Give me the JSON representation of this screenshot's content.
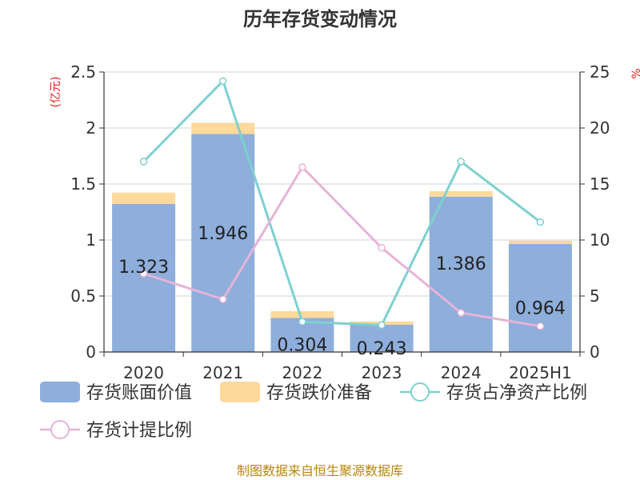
{
  "chart_data": {
    "type": "bar",
    "title": "历年存货变动情况",
    "left_unit": "(亿元)",
    "right_unit": "%",
    "categories": [
      "2020",
      "2021",
      "2022",
      "2023",
      "2024",
      "2025H1"
    ],
    "series": [
      {
        "name": "存货账面价值",
        "kind": "bar",
        "axis": "left",
        "color": "#8eaedb",
        "values": [
          1.323,
          1.946,
          0.304,
          0.243,
          1.386,
          0.964
        ],
        "labels": [
          "1.323",
          "1.946",
          "0.304",
          "0.243",
          "1.386",
          "0.964"
        ]
      },
      {
        "name": "存货跌价准备",
        "kind": "bar",
        "axis": "left",
        "color": "#fdd99b",
        "values": [
          0.1,
          0.1,
          0.06,
          0.03,
          0.05,
          0.03
        ]
      },
      {
        "name": "存货占净资产比例",
        "kind": "line",
        "axis": "right",
        "color": "#7ed0d0",
        "values": [
          17.0,
          24.2,
          2.7,
          2.4,
          17.0,
          11.6
        ]
      },
      {
        "name": "存货计提比例",
        "kind": "line",
        "axis": "right",
        "color": "#e6b4d8",
        "values": [
          7.0,
          4.7,
          16.5,
          9.3,
          3.5,
          2.3
        ]
      }
    ],
    "left_axis": {
      "min": 0,
      "max": 2.5,
      "ticks": [
        "0",
        "0.5",
        "1",
        "1.5",
        "2",
        "2.5"
      ]
    },
    "right_axis": {
      "min": 0,
      "max": 25,
      "ticks": [
        "0",
        "5",
        "10",
        "15",
        "20",
        "25"
      ]
    },
    "grid": true,
    "legend_position": "bottom",
    "source": "制图数据来自恒生聚源数据库"
  }
}
